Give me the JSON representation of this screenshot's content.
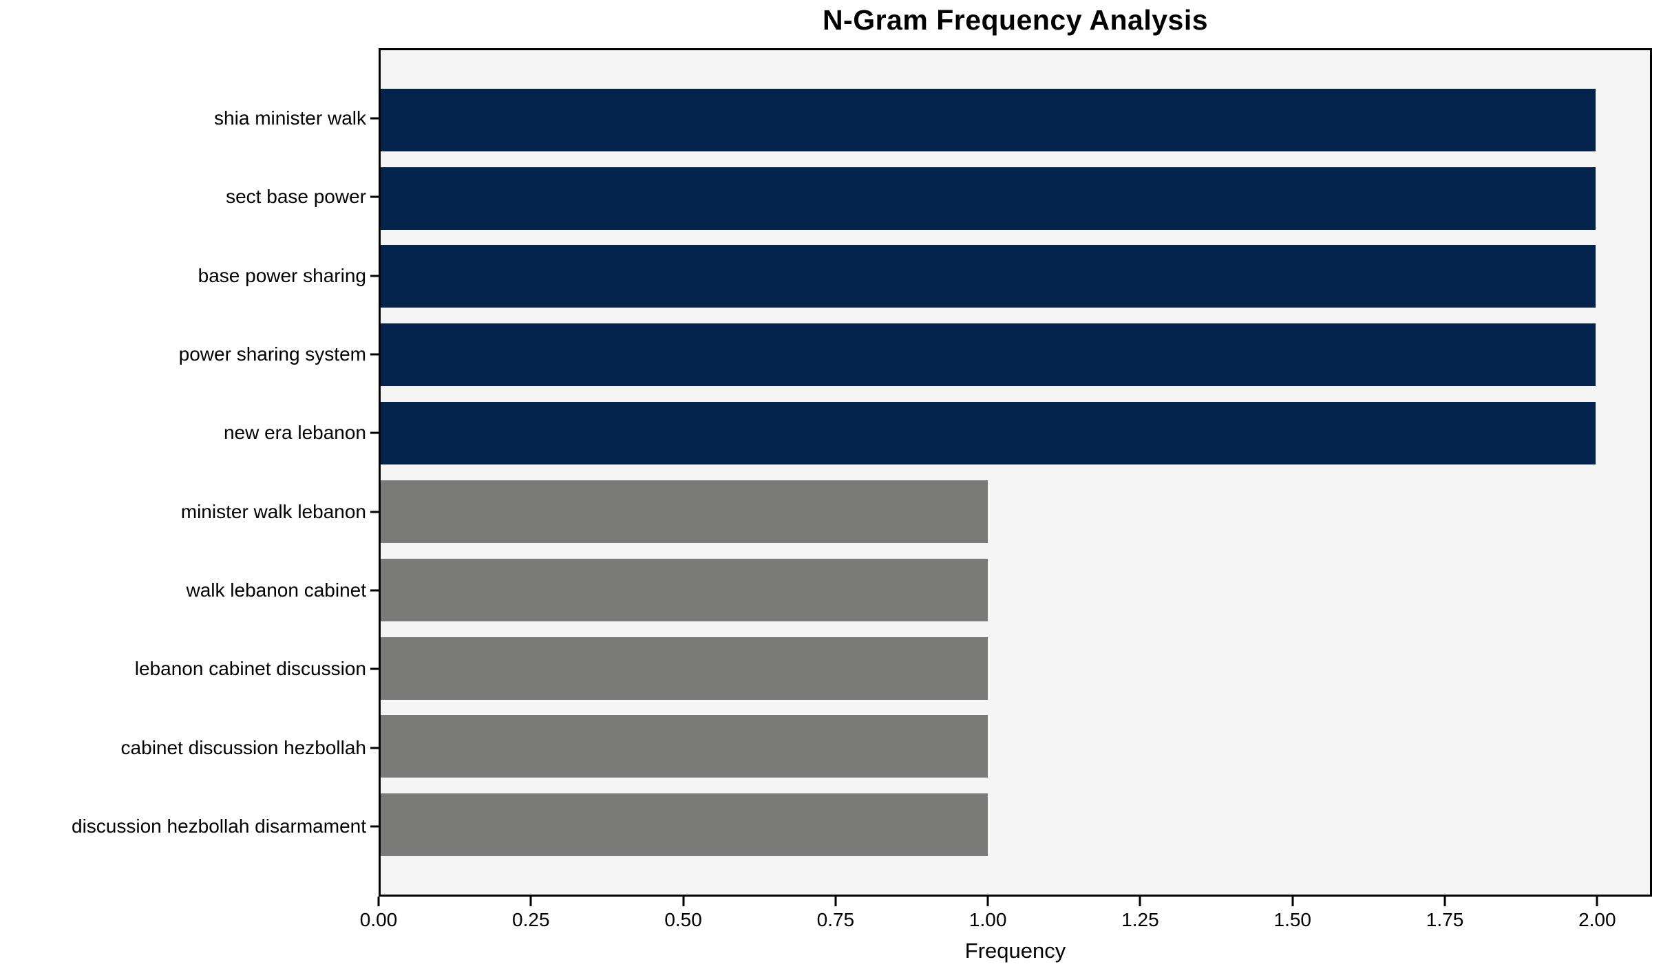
{
  "chart_data": {
    "type": "bar",
    "orientation": "horizontal",
    "title": "N-Gram Frequency Analysis",
    "xlabel": "Frequency",
    "ylabel": "",
    "categories": [
      "shia minister walk",
      "sect base power",
      "base power sharing",
      "power sharing system",
      "new era lebanon",
      "minister walk lebanon",
      "walk lebanon cabinet",
      "lebanon cabinet discussion",
      "cabinet discussion hezbollah",
      "discussion hezbollah disarmament"
    ],
    "values": [
      2,
      2,
      2,
      2,
      2,
      1,
      1,
      1,
      1,
      1
    ],
    "bar_colors": [
      "#03224c",
      "#03224c",
      "#03224c",
      "#03224c",
      "#03224c",
      "#7a7a78",
      "#7a7a78",
      "#7a7a78",
      "#7a7a78",
      "#7a7a78"
    ],
    "xlim": [
      0,
      2.09
    ],
    "xticks": [
      {
        "value": 0.0,
        "label": "0.00"
      },
      {
        "value": 0.25,
        "label": "0.25"
      },
      {
        "value": 0.5,
        "label": "0.50"
      },
      {
        "value": 0.75,
        "label": "0.75"
      },
      {
        "value": 1.0,
        "label": "1.00"
      },
      {
        "value": 1.25,
        "label": "1.25"
      },
      {
        "value": 1.5,
        "label": "1.50"
      },
      {
        "value": 1.75,
        "label": "1.75"
      },
      {
        "value": 2.0,
        "label": "2.00"
      }
    ],
    "grid": false,
    "legend": null,
    "colors": {
      "high_frequency_bar": "#03224c",
      "low_frequency_bar": "#7a7a78",
      "plot_background": "#f5f5f5",
      "figure_background": "#ffffff",
      "axis": "#000000",
      "text": "#000000"
    }
  }
}
